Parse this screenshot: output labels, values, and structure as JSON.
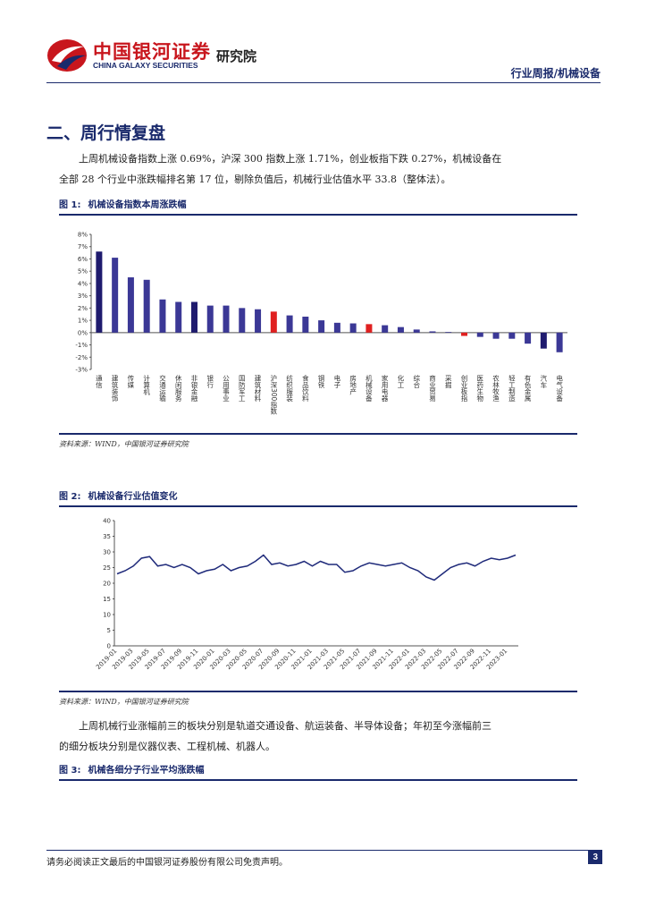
{
  "header": {
    "brand": "中国银河证券",
    "brand_en": "CHINA GALAXY SECURITIES",
    "institute": "研究院",
    "report_type": "行业周报/机械设备"
  },
  "section_title": "二、周行情复盘",
  "paragraphs": [
    "上周机械设备指数上涨 0.69%，沪深 300 指数上涨 1.71%，创业板指下跌 0.27%，机械设备在全部 28 个行业中涨跌幅排名第 17 位，剔除负值后，机械行业估值水平 33.8（整体法）。",
    "上周机械行业涨幅前三的板块分别是轨道交通设备、航运装备、半导体设备；年初至今涨幅前三的细分板块分别是仪器仪表、工程机械、机器人。"
  ],
  "figures": [
    {
      "label": "图 1:",
      "title": "机械设备指数本周涨跌幅",
      "source": "资料来源：WIND，中国银河证券研究院"
    },
    {
      "label": "图 2:",
      "title": "机械设备行业估值变化",
      "source": "资料来源：WIND，中国银河证券研究院"
    },
    {
      "label": "图 3:",
      "title": "机械各细分子行业平均涨跌幅"
    }
  ],
  "chart_data": [
    {
      "type": "bar",
      "categories": [
        "通信",
        "建筑装饰",
        "传媒",
        "计算机",
        "交通运输",
        "休闲服务",
        "非银金融",
        "银行",
        "公用事业",
        "国防军工",
        "建筑材料",
        "沪深300指数",
        "纺织服装",
        "食品饮料",
        "钢铁",
        "电子",
        "房地产",
        "机械设备",
        "家用电器",
        "化工",
        "综合",
        "商业贸易",
        "采掘",
        "创业板指",
        "医药生物",
        "农林牧渔",
        "轻工制造",
        "有色金属",
        "汽车",
        "电气设备"
      ],
      "values": [
        6.6,
        6.1,
        4.5,
        4.3,
        2.7,
        2.5,
        2.5,
        2.2,
        2.2,
        2.0,
        1.9,
        1.71,
        1.4,
        1.3,
        1.0,
        0.8,
        0.75,
        0.69,
        0.6,
        0.45,
        0.25,
        0.1,
        0.05,
        -0.27,
        -0.35,
        -0.5,
        -0.5,
        -0.9,
        -1.3,
        -1.6
      ],
      "colors": [
        "#1f1b6e",
        "#3b3896",
        "#3b3896",
        "#3b3896",
        "#3b3896",
        "#3b3896",
        "#1f1b6e",
        "#3b3896",
        "#3b3896",
        "#3b3896",
        "#3b3896",
        "#e02020",
        "#3b3896",
        "#3b3896",
        "#3b3896",
        "#3b3896",
        "#3b3896",
        "#e02020",
        "#3b3896",
        "#3b3896",
        "#3b3896",
        "#3b3896",
        "#3b3896",
        "#e02020",
        "#3b3896",
        "#3b3896",
        "#3b3896",
        "#3b3896",
        "#1f1b6e",
        "#3b3896"
      ],
      "ylim": [
        -3,
        8
      ],
      "yticks": [
        {
          "value": -3,
          "label": "-3%"
        },
        {
          "value": -2,
          "label": "-2%"
        },
        {
          "value": -1,
          "label": "-1%"
        },
        {
          "value": 0,
          "label": "0%"
        },
        {
          "value": 1,
          "label": "1%"
        },
        {
          "value": 2,
          "label": "2%"
        },
        {
          "value": 3,
          "label": "3%"
        },
        {
          "value": 4,
          "label": "4%"
        },
        {
          "value": 5,
          "label": "5%"
        },
        {
          "value": 6,
          "label": "6%"
        },
        {
          "value": 7,
          "label": "7%"
        },
        {
          "value": 8,
          "label": "8%"
        }
      ]
    },
    {
      "type": "line",
      "color": "#1f2a7a",
      "categories": [
        "2019-01",
        null,
        "2019-03",
        null,
        "2019-05",
        null,
        "2019-07",
        null,
        "2019-09",
        null,
        "2019-11",
        null,
        "2020-01",
        null,
        "2020-03",
        null,
        "2020-05",
        null,
        "2020-07",
        null,
        "2020-09",
        null,
        "2020-11",
        null,
        "2021-01",
        null,
        "2021-03",
        null,
        "2021-05",
        null,
        "2021-07",
        null,
        "2021-09",
        null,
        "2021-11",
        null,
        "2022-01",
        null,
        "2022-03",
        null,
        "2022-05",
        null,
        "2022-07",
        null,
        "2022-09",
        null,
        "2022-11",
        null,
        "2023-01",
        null
      ],
      "values": [
        23,
        24,
        25.5,
        28,
        28.5,
        25.5,
        26,
        25,
        26,
        25,
        23,
        24,
        24.5,
        26,
        24,
        25,
        25.5,
        27,
        29,
        26,
        26.5,
        25.5,
        26,
        27,
        25.5,
        27,
        26,
        26,
        23.5,
        24,
        25.5,
        26.5,
        26,
        25.5,
        26,
        26.5,
        25,
        24,
        22,
        21,
        23,
        25,
        26,
        26.5,
        25.5,
        27,
        28,
        27.5,
        28,
        29
      ],
      "ylim": [
        0,
        40
      ],
      "yticks": [
        0,
        5,
        10,
        15,
        20,
        25,
        30,
        35,
        40
      ]
    }
  ],
  "footer": {
    "disclaimer": "请务必阅读正文最后的中国银河证券股份有限公司免责声明。",
    "page": 3
  }
}
